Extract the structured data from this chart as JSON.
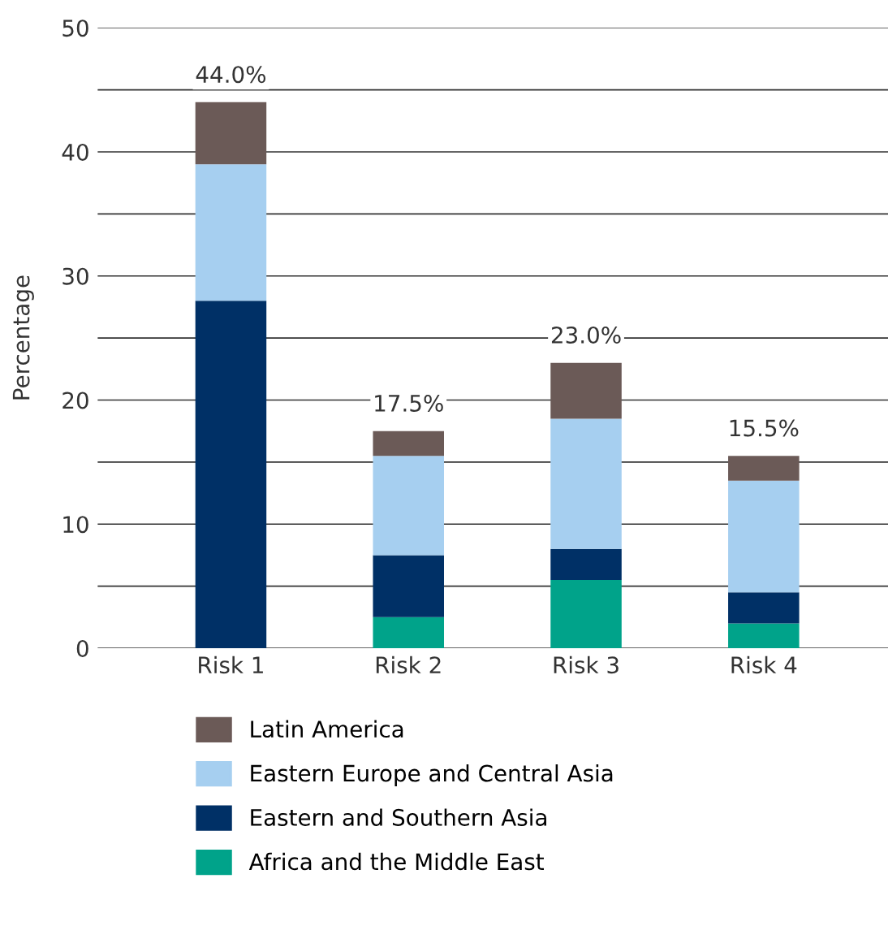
{
  "chart_data": {
    "type": "bar",
    "stacked": true,
    "ylabel": "Percentage",
    "categories": [
      "Risk 1",
      "Risk 2",
      "Risk 3",
      "Risk 4"
    ],
    "series": [
      {
        "name": "Africa and the Middle East",
        "color": "#00a38a",
        "values": [
          0,
          2.5,
          5.5,
          2
        ]
      },
      {
        "name": "Eastern and Southern Asia",
        "color": "#003066",
        "values": [
          28,
          5,
          2.5,
          2.5
        ]
      },
      {
        "name": "Eastern Europe and Central Asia",
        "color": "#a6cff0",
        "values": [
          11,
          8,
          10.5,
          9
        ]
      },
      {
        "name": "Latin America",
        "color": "#6b5a57",
        "values": [
          5,
          2,
          4.5,
          2
        ]
      }
    ],
    "totals": [
      "44.0%",
      "17.5%",
      "23.0%",
      "15.5%"
    ],
    "ylim": [
      0,
      50
    ],
    "yticks": [
      0,
      {
        "value": 5,
        "label": null
      },
      10,
      {
        "value": 15,
        "label": null
      },
      20,
      {
        "value": 25,
        "label": null
      },
      30,
      {
        "value": 35,
        "label": null
      },
      40,
      {
        "value": 45,
        "label": null
      },
      50
    ],
    "grid": "y",
    "legend": "bottom"
  }
}
